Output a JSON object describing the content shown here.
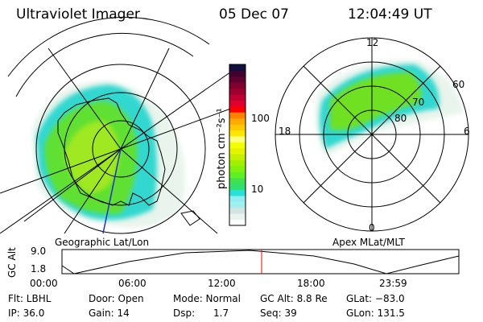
{
  "header": {
    "instrument": "Ultraviolet Imager",
    "date": "05 Dec 07",
    "time": "12:04:49 UT"
  },
  "left_map": {
    "label": "Geographic Lat/Lon"
  },
  "right_map": {
    "label": "Apex MLat/MLT",
    "mlt_labels": {
      "top": "12",
      "bottom": "0",
      "left": "18",
      "right": "6"
    },
    "lat_labels": [
      "60",
      "70",
      "80"
    ]
  },
  "colorbar": {
    "unit_label": "photon cm⁻²s⁻¹",
    "ticks": [
      "100",
      "10"
    ],
    "colors": [
      "#ffffff",
      "#e8f4ec",
      "#d4e4e4",
      "#a0f0f0",
      "#90eef0",
      "#28e0d8",
      "#30e070",
      "#40e050",
      "#5ef020",
      "#80f010",
      "#a0f000",
      "#c4f000",
      "#e4f400",
      "#f4ff00",
      "#ffff80",
      "#ffe600",
      "#ffc800",
      "#ffa800",
      "#ff8000",
      "#ff0000",
      "#e00030",
      "#c00030",
      "#a00030",
      "#800030",
      "#600030",
      "#400030",
      "#101040"
    ]
  },
  "alt_plot": {
    "ylabel": "GC Alt",
    "y_ticks": [
      "9.0",
      "1.8"
    ],
    "x_ticks": [
      "00:00",
      "06:00",
      "12:00",
      "18:00",
      "23:59"
    ],
    "current_time_fraction": 0.503,
    "marker_color": "#ff0000"
  },
  "info": {
    "filter": "Flt: LBHL",
    "ip": "IP: 36.0",
    "door": "Door: Open",
    "gain": "Gain: 14",
    "mode": "Mode: Normal",
    "dsp_label": "Dsp:",
    "dsp_value": "1.7",
    "gc_alt": "GC Alt: 8.8 Re",
    "seq": "Seq: 39",
    "glat": "GLat: −83.0",
    "glon": "GLon: 131.5"
  }
}
